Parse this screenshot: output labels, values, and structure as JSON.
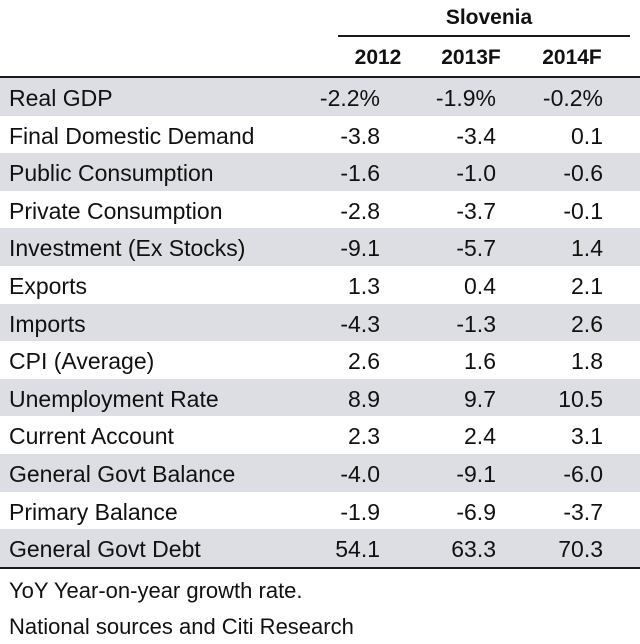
{
  "chart_data": {
    "type": "table",
    "country": "Slovenia",
    "columns": [
      "2012",
      "2013F",
      "2014F"
    ],
    "rows": [
      {
        "label": "Real GDP",
        "values": [
          "-2.2%",
          "-1.9%",
          "-0.2%"
        ]
      },
      {
        "label": "Final Domestic Demand",
        "values": [
          "-3.8",
          "-3.4",
          "0.1"
        ]
      },
      {
        "label": "Public Consumption",
        "values": [
          "-1.6",
          "-1.0",
          "-0.6"
        ]
      },
      {
        "label": "Private Consumption",
        "values": [
          "-2.8",
          "-3.7",
          "-0.1"
        ]
      },
      {
        "label": "Investment (Ex Stocks)",
        "values": [
          "-9.1",
          "-5.7",
          "1.4"
        ]
      },
      {
        "label": "Exports",
        "values": [
          "1.3",
          "0.4",
          "2.1"
        ]
      },
      {
        "label": "Imports",
        "values": [
          "-4.3",
          "-1.3",
          "2.6"
        ]
      },
      {
        "label": "CPI (Average)",
        "values": [
          "2.6",
          "1.6",
          "1.8"
        ]
      },
      {
        "label": "Unemployment Rate",
        "values": [
          "8.9",
          "9.7",
          "10.5"
        ]
      },
      {
        "label": "Current Account",
        "values": [
          "2.3",
          "2.4",
          "3.1"
        ]
      },
      {
        "label": "General Govt Balance",
        "values": [
          "-4.0",
          "-9.1",
          "-6.0"
        ]
      },
      {
        "label": "Primary Balance",
        "values": [
          "-1.9",
          "-6.9",
          "-3.7"
        ]
      },
      {
        "label": "General Govt Debt",
        "values": [
          "54.1",
          "63.3",
          "70.3"
        ]
      }
    ],
    "notes": [
      "YoY Year-on-year growth rate.",
      "National sources and Citi Research"
    ]
  },
  "colors": {
    "row_shade": "#dcdee3",
    "rule": "#1a1a1a",
    "text": "#111111"
  }
}
